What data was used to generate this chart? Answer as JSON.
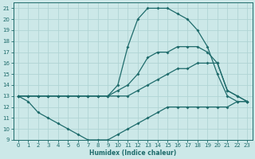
{
  "xlabel": "Humidex (Indice chaleur)",
  "bg_color": "#cce8e8",
  "grid_color": "#b0d4d4",
  "line_color": "#1e6b6b",
  "xlim": [
    -0.5,
    23.5
  ],
  "ylim": [
    9,
    21.5
  ],
  "xticks": [
    0,
    1,
    2,
    3,
    4,
    5,
    6,
    7,
    8,
    9,
    10,
    11,
    12,
    13,
    14,
    15,
    16,
    17,
    18,
    19,
    20,
    21,
    22,
    23
  ],
  "yticks": [
    9,
    10,
    11,
    12,
    13,
    14,
    15,
    16,
    17,
    18,
    19,
    20,
    21
  ],
  "curve_top": {
    "x": [
      0,
      1,
      2,
      3,
      4,
      5,
      6,
      7,
      8,
      9,
      10,
      11,
      12,
      13,
      14,
      15,
      16,
      17,
      18,
      19,
      20,
      21,
      22,
      23
    ],
    "y": [
      13,
      13,
      13,
      13,
      13,
      13,
      13,
      13,
      13,
      13,
      14,
      17.5,
      20,
      21,
      21,
      21,
      20.5,
      20,
      19,
      17.5,
      15,
      13,
      12.5,
      12.5
    ]
  },
  "curve_second": {
    "x": [
      0,
      1,
      2,
      3,
      4,
      5,
      6,
      7,
      8,
      9,
      10,
      11,
      12,
      13,
      14,
      15,
      16,
      17,
      18,
      19,
      20,
      21,
      22,
      23
    ],
    "y": [
      13,
      13,
      13,
      13,
      13,
      13,
      13,
      13,
      13,
      13,
      13.5,
      14,
      15,
      16.5,
      17,
      17,
      17.5,
      17.5,
      17.5,
      17,
      16,
      13.5,
      13,
      12.5
    ]
  },
  "curve_third": {
    "x": [
      0,
      1,
      2,
      3,
      4,
      5,
      6,
      7,
      8,
      9,
      10,
      11,
      12,
      13,
      14,
      15,
      16,
      17,
      18,
      19,
      20,
      21,
      22,
      23
    ],
    "y": [
      13,
      13,
      13,
      13,
      13,
      13,
      13,
      13,
      13,
      13,
      13,
      13,
      13.5,
      14,
      14.5,
      15,
      15.5,
      15.5,
      16,
      16,
      16,
      13.5,
      13,
      12.5
    ]
  },
  "curve_bottom": {
    "x": [
      0,
      1,
      2,
      3,
      4,
      5,
      6,
      7,
      8,
      9,
      10,
      11,
      12,
      13,
      14,
      15,
      16,
      17,
      18,
      19,
      20,
      21,
      22,
      23
    ],
    "y": [
      13,
      12.5,
      11.5,
      11,
      10.5,
      10,
      9.5,
      9,
      9,
      9,
      9.5,
      10,
      10.5,
      11,
      11.5,
      12,
      12,
      12,
      12,
      12,
      12,
      12,
      12.5,
      12.5
    ]
  }
}
